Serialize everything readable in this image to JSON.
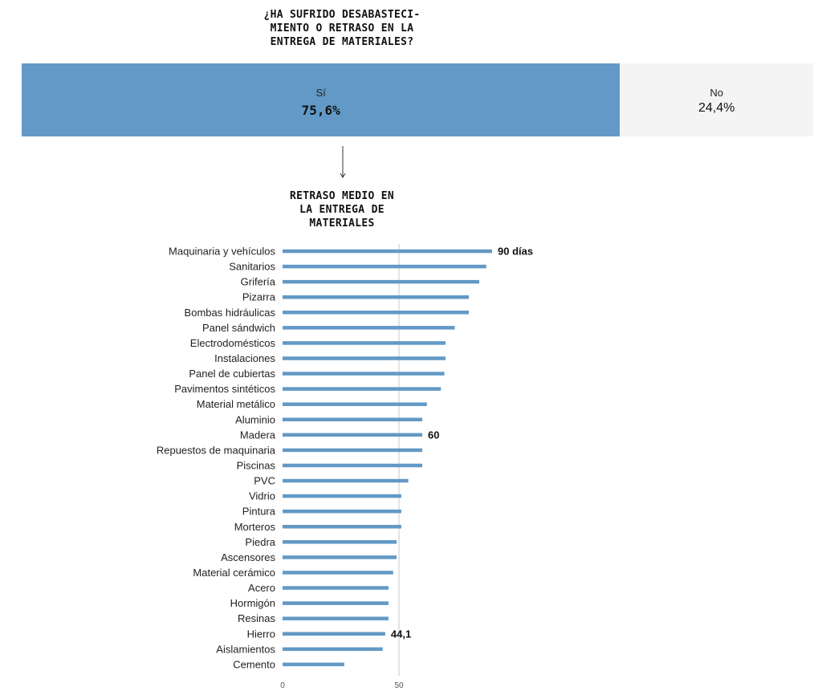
{
  "question": {
    "title": "¿HA SUFRIDO DESABASTECI-\nMIENTO O RETRASO EN LA\nENTREGA DE MATERIALES?",
    "answers": [
      {
        "label": "Sí",
        "value": 75.6,
        "display": "75,6%",
        "color": "#6299c6"
      },
      {
        "label": "No",
        "value": 24.4,
        "display": "24,4%",
        "color": "#f4f4f4"
      }
    ]
  },
  "chart_data": {
    "type": "bar",
    "orientation": "horizontal",
    "title": "RETRASO MEDIO EN\nLA ENTREGA DE\nMATERIALES",
    "categories": [
      "Maquinaria y vehículos",
      "Sanitarios",
      "Grifería",
      "Pizarra",
      "Bombas hidráulicas",
      "Panel sándwich",
      "Electrodomésticos",
      "Instalaciones",
      "Panel de cubiertas",
      "Pavimentos sintéticos",
      "Material metálico",
      "Aluminio",
      "Madera",
      "Repuestos de maquinaria",
      "Piscinas",
      "PVC",
      "Vidrio",
      "Pintura",
      "Morteros",
      "Piedra",
      "Ascensores",
      "Material cerámico",
      "Acero",
      "Hormigón",
      "Resinas",
      "Hierro",
      "Aislamientos",
      "Cemento"
    ],
    "values": [
      90,
      87.5,
      84.5,
      80,
      80,
      74,
      70,
      70,
      69.5,
      68,
      62,
      60,
      60,
      60,
      60,
      54,
      51,
      51,
      51,
      49,
      49,
      47.5,
      45.5,
      45.5,
      45.5,
      44.1,
      43,
      26.5
    ],
    "data_labels": [
      {
        "index": 0,
        "text": "90 días"
      },
      {
        "index": 12,
        "text": "60"
      },
      {
        "index": 25,
        "text": "44,1"
      }
    ],
    "xlim": [
      0,
      90
    ],
    "xticks": [
      0,
      50
    ],
    "bar_color": "#6299c6",
    "gridline_at": 50
  }
}
